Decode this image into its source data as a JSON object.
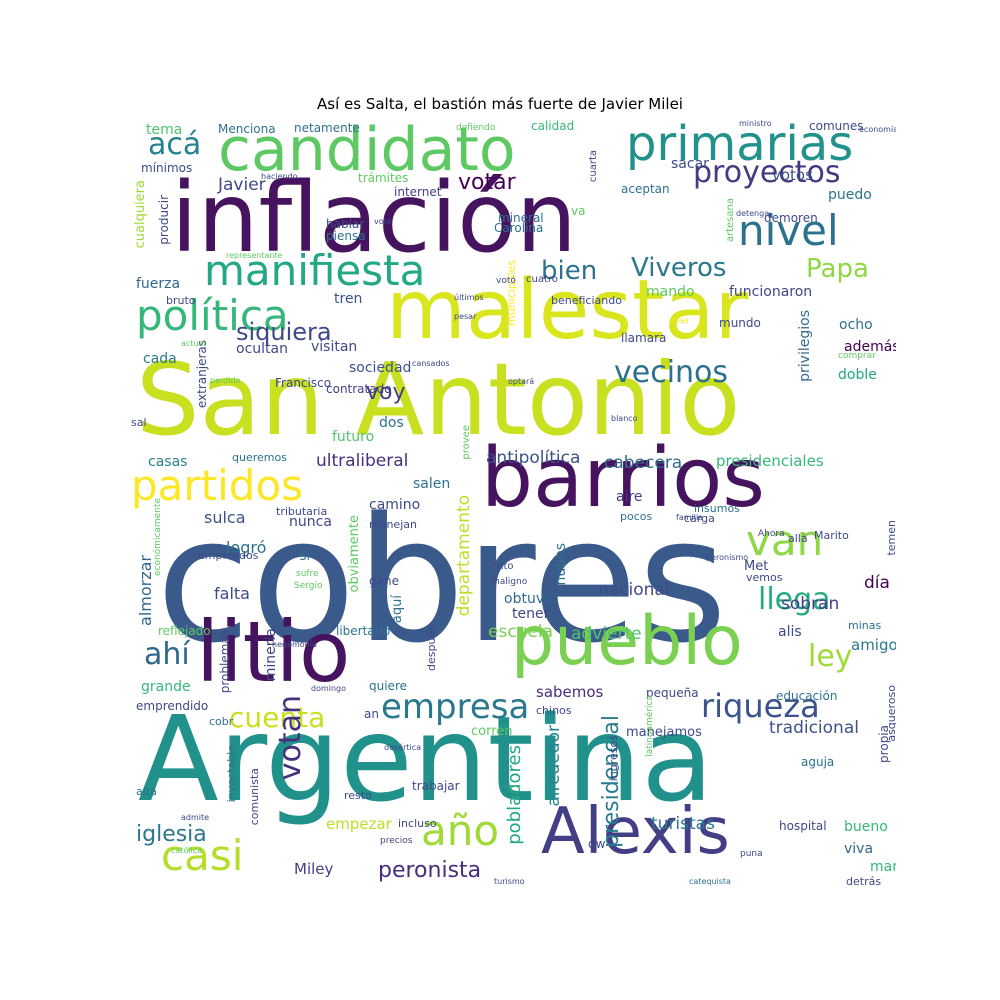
{
  "title": "Así es Salta, el bastión más fuerte de Javier Milei",
  "palette": "viridis",
  "words": [
    {
      "text": "cobres",
      "color": "#3b5a8c"
    },
    {
      "text": "Argentina",
      "color": "#21918c"
    },
    {
      "text": "San Antonio",
      "color": "#c8e020"
    },
    {
      "text": "inflación",
      "color": "#46135f"
    },
    {
      "text": "barrios",
      "color": "#46135f"
    },
    {
      "text": "malestar",
      "color": "#d9e51d"
    },
    {
      "text": "litio",
      "color": "#46135f"
    },
    {
      "text": "pueblo",
      "color": "#7ad151"
    },
    {
      "text": "candidato",
      "color": "#5ec962"
    },
    {
      "text": "Alexis",
      "color": "#433e85"
    },
    {
      "text": "primarias",
      "color": "#21918c"
    },
    {
      "text": "manifiesta",
      "color": "#22a884"
    },
    {
      "text": "política",
      "color": "#35b779"
    },
    {
      "text": "partidos",
      "color": "#fde725"
    },
    {
      "text": "casi",
      "color": "#b5de2b"
    },
    {
      "text": "año",
      "color": "#a0da39"
    },
    {
      "text": "van",
      "color": "#8fd744"
    },
    {
      "text": "empresa",
      "color": "#2a788e"
    },
    {
      "text": "nivel",
      "color": "#2c728e"
    },
    {
      "text": "proyectos",
      "color": "#443983"
    },
    {
      "text": "riqueza",
      "color": "#3b528b"
    },
    {
      "text": "vecinos",
      "color": "#2d708e"
    },
    {
      "text": "cuenta",
      "color": "#c8e020"
    },
    {
      "text": "ahí",
      "color": "#31688e"
    },
    {
      "text": "ley",
      "color": "#a0da39"
    },
    {
      "text": "llega",
      "color": "#25ab82"
    },
    {
      "text": "votan",
      "color": "#46307e"
    },
    {
      "text": "Viveros",
      "color": "#2a788e"
    },
    {
      "text": "Papa",
      "color": "#8fd744"
    },
    {
      "text": "acá",
      "color": "#26828e"
    },
    {
      "text": "bien",
      "color": "#2c728e"
    },
    {
      "text": "siquiera",
      "color": "#3e4989"
    },
    {
      "text": "iglesia",
      "color": "#2a788e"
    },
    {
      "text": "peronista",
      "color": "#472d7b"
    },
    {
      "text": "votar",
      "color": "#440154"
    },
    {
      "text": "voy",
      "color": "#433e85"
    },
    {
      "text": "Javier",
      "color": "#3e4989"
    },
    {
      "text": "presidencial",
      "color": "#287c8e"
    },
    {
      "text": "pobladores",
      "color": "#22a884"
    },
    {
      "text": "alrededor",
      "color": "#25848e"
    },
    {
      "text": "turistas",
      "color": "#2a788e"
    },
    {
      "text": "antipolítica",
      "color": "#3b528b"
    },
    {
      "text": "ultraliberal",
      "color": "#46307e"
    },
    {
      "text": "cabecera",
      "color": "#2f6c8e"
    },
    {
      "text": "presidenciales",
      "color": "#35b779"
    },
    {
      "text": "departamento",
      "color": "#bddf26"
    },
    {
      "text": "escuela",
      "color": "#7ad151"
    },
    {
      "text": "advierte",
      "color": "#4ec36b"
    },
    {
      "text": "nacional",
      "color": "#3e4989"
    },
    {
      "text": "sobran",
      "color": "#433e85"
    },
    {
      "text": "día",
      "color": "#440154"
    },
    {
      "text": "tradicional",
      "color": "#3b528b"
    },
    {
      "text": "sabemos",
      "color": "#472d7b"
    },
    {
      "text": "empezar",
      "color": "#bddf26"
    },
    {
      "text": "Miley",
      "color": "#433e85"
    },
    {
      "text": "votos",
      "color": "#3b528b"
    },
    {
      "text": "puedo",
      "color": "#2c728e"
    },
    {
      "text": "sacar",
      "color": "#3e4989"
    },
    {
      "text": "funcionaron",
      "color": "#414487"
    },
    {
      "text": "mando",
      "color": "#5ec962"
    },
    {
      "text": "fuerza",
      "color": "#31688e"
    },
    {
      "text": "tren",
      "color": "#3b528b"
    },
    {
      "text": "visitan",
      "color": "#3e4989"
    },
    {
      "text": "ocultan",
      "color": "#3e4989"
    },
    {
      "text": "cada",
      "color": "#2a788e"
    },
    {
      "text": "sociedad",
      "color": "#3b528b"
    },
    {
      "text": "futuro",
      "color": "#4ec36b"
    },
    {
      "text": "dos",
      "color": "#2c728e"
    },
    {
      "text": "casas",
      "color": "#26828e"
    },
    {
      "text": "salen",
      "color": "#2c728e"
    },
    {
      "text": "sulca",
      "color": "#3b528b"
    },
    {
      "text": "nunca",
      "color": "#414487"
    },
    {
      "text": "camino",
      "color": "#3e4989"
    },
    {
      "text": "logró",
      "color": "#2c728e"
    },
    {
      "text": "falta",
      "color": "#3e4989"
    },
    {
      "text": "almorzar",
      "color": "#31688e"
    },
    {
      "text": "obtuvo",
      "color": "#31688e"
    },
    {
      "text": "tener",
      "color": "#414487"
    },
    {
      "text": "nubes",
      "color": "#2c728e"
    },
    {
      "text": "aire",
      "color": "#433e85"
    },
    {
      "text": "amigos",
      "color": "#2a788e"
    },
    {
      "text": "alis",
      "color": "#3e4989"
    },
    {
      "text": "grande",
      "color": "#35b779"
    },
    {
      "text": "minería",
      "color": "#414487"
    },
    {
      "text": "bueno",
      "color": "#35b779"
    },
    {
      "text": "mar",
      "color": "#35b779"
    },
    {
      "text": "viva",
      "color": "#31688e"
    },
    {
      "text": "ocho",
      "color": "#2c728e"
    },
    {
      "text": "además",
      "color": "#440154"
    },
    {
      "text": "doble",
      "color": "#22a884"
    },
    {
      "text": "privilegios",
      "color": "#31688e"
    },
    {
      "text": "mundo",
      "color": "#3e4989"
    },
    {
      "text": "llamara",
      "color": "#3e4989"
    },
    {
      "text": "Carolina",
      "color": "#2c728e"
    },
    {
      "text": "mineral",
      "color": "#2c728e"
    },
    {
      "text": "hablar",
      "color": "#3e4989"
    },
    {
      "text": "piensa",
      "color": "#2c728e"
    },
    {
      "text": "tema",
      "color": "#4ec36b"
    },
    {
      "text": "Menciona",
      "color": "#2c728e"
    },
    {
      "text": "netamente",
      "color": "#2c728e"
    },
    {
      "text": "calidad",
      "color": "#35b779"
    },
    {
      "text": "comunes",
      "color": "#3e4989"
    },
    {
      "text": "mínimos",
      "color": "#3e4989"
    },
    {
      "text": "trámites",
      "color": "#5ec962"
    },
    {
      "text": "internet",
      "color": "#433e85"
    },
    {
      "text": "aceptan",
      "color": "#2c728e"
    },
    {
      "text": "demoren",
      "color": "#3e4989"
    },
    {
      "text": "cualquiera",
      "color": "#a0da39"
    },
    {
      "text": "producir",
      "color": "#3e4989"
    },
    {
      "text": "bruto",
      "color": "#3e4989"
    },
    {
      "text": "extranjeras",
      "color": "#3e4989"
    },
    {
      "text": "Francisco",
      "color": "#3e4989"
    },
    {
      "text": "contratado",
      "color": "#433e85"
    },
    {
      "text": "sal",
      "color": "#3e4989"
    },
    {
      "text": "queremos",
      "color": "#2c728e"
    },
    {
      "text": "tributaria",
      "color": "#3e4989"
    },
    {
      "text": "manejan",
      "color": "#3e4989"
    },
    {
      "text": "empleados",
      "color": "#3e4989"
    },
    {
      "text": "Si",
      "color": "#2c728e"
    },
    {
      "text": "gane",
      "color": "#3e4989"
    },
    {
      "text": "obviamente",
      "color": "#5ec962"
    },
    {
      "text": "aquí",
      "color": "#2c728e"
    },
    {
      "text": "libertario",
      "color": "#2c728e"
    },
    {
      "text": "reflejado",
      "color": "#5ec962"
    },
    {
      "text": "problemas",
      "color": "#3e4989"
    },
    {
      "text": "quiere",
      "color": "#2c728e"
    },
    {
      "text": "después",
      "color": "#3e4989"
    },
    {
      "text": "emprendido",
      "color": "#3e4989"
    },
    {
      "text": "cobr",
      "color": "#2c728e"
    },
    {
      "text": "an",
      "color": "#3e4989"
    },
    {
      "text": "corren",
      "color": "#5ec962"
    },
    {
      "text": "chinos",
      "color": "#3e4989"
    },
    {
      "text": "manejamos",
      "color": "#3e4989"
    },
    {
      "text": "ingresos",
      "color": "#3e4989"
    },
    {
      "text": "pequeña",
      "color": "#3e4989"
    },
    {
      "text": "educación",
      "color": "#2c728e"
    },
    {
      "text": "aguja",
      "color": "#2c728e"
    },
    {
      "text": "propia",
      "color": "#3e4989"
    },
    {
      "text": "asqueroso",
      "color": "#3e4989"
    },
    {
      "text": "alta",
      "color": "#2c728e"
    },
    {
      "text": "inyectable",
      "color": "#2c728e"
    },
    {
      "text": "comunista",
      "color": "#3e4989"
    },
    {
      "text": "resto",
      "color": "#3e4989"
    },
    {
      "text": "trabajar",
      "color": "#3e4989"
    },
    {
      "text": "incluso",
      "color": "#3e4989"
    },
    {
      "text": "dw",
      "color": "#3e4989"
    },
    {
      "text": "hospital",
      "color": "#3e4989"
    },
    {
      "text": "detrás",
      "color": "#3e4989"
    },
    {
      "text": "Met",
      "color": "#3e4989"
    },
    {
      "text": "Marito",
      "color": "#3e4989"
    },
    {
      "text": "temen",
      "color": "#3e4989"
    },
    {
      "text": "carga",
      "color": "#3e4989"
    },
    {
      "text": "insumos",
      "color": "#2c728e"
    },
    {
      "text": "pocos",
      "color": "#2c728e"
    },
    {
      "text": "minas",
      "color": "#2c728e"
    },
    {
      "text": "beneficiando",
      "color": "#3e4989"
    },
    {
      "text": "municipales",
      "color": "#fde725"
    },
    {
      "text": "cuatro",
      "color": "#3e4989"
    },
    {
      "text": "va",
      "color": "#5ec962"
    },
    {
      "text": "cuarta",
      "color": "#3e4989"
    },
    {
      "text": "artesana",
      "color": "#5ec962"
    },
    {
      "text": "provee",
      "color": "#5ec962"
    },
    {
      "text": "ento",
      "color": "#3e4989"
    },
    {
      "text": "maligno",
      "color": "#3e4989"
    },
    {
      "text": "vemos",
      "color": "#3e4989"
    },
    {
      "text": "allá",
      "color": "#3e4989"
    },
    {
      "text": "Ahora",
      "color": "#3e4989"
    },
    {
      "text": "familia",
      "color": "#3e4989"
    },
    {
      "text": "peronismo",
      "color": "#3e4989"
    },
    {
      "text": "hegemonía",
      "color": "#3e4989"
    },
    {
      "text": "domingo",
      "color": "#3e4989"
    },
    {
      "text": "desértica",
      "color": "#3e4989"
    },
    {
      "text": "latinoamérica",
      "color": "#5ec962"
    },
    {
      "text": "admite",
      "color": "#3e4989"
    },
    {
      "text": "católica",
      "color": "#5ec962"
    },
    {
      "text": "precios",
      "color": "#3e4989"
    },
    {
      "text": "puna",
      "color": "#3e4989"
    },
    {
      "text": "turismo",
      "color": "#3e4989"
    },
    {
      "text": "catequista",
      "color": "#2c728e"
    },
    {
      "text": "económicamente",
      "color": "#5ec962"
    },
    {
      "text": "sufre",
      "color": "#5ec962"
    },
    {
      "text": "Sergio",
      "color": "#5ec962"
    },
    {
      "text": "defiendo",
      "color": "#5ec962"
    },
    {
      "text": "ministro",
      "color": "#3e4989"
    },
    {
      "text": "haciendo",
      "color": "#3e4989"
    },
    {
      "text": "votó",
      "color": "#3e4989"
    },
    {
      "text": "voté",
      "color": "#3e4989"
    },
    {
      "text": "detenga",
      "color": "#3e4989"
    },
    {
      "text": "economía",
      "color": "#3e4989"
    },
    {
      "text": "representante",
      "color": "#5ec962"
    },
    {
      "text": "últimos",
      "color": "#3e4989"
    },
    {
      "text": "pesar",
      "color": "#3e4989"
    },
    {
      "text": "maa",
      "color": "#fde725"
    },
    {
      "text": "actual",
      "color": "#5ec962"
    },
    {
      "text": "perdido",
      "color": "#5ec962"
    },
    {
      "text": "cansados",
      "color": "#3e4989"
    },
    {
      "text": "optará",
      "color": "#3e4989"
    },
    {
      "text": "blanco",
      "color": "#3e4989"
    },
    {
      "text": "comprar",
      "color": "#5ec962"
    }
  ]
}
